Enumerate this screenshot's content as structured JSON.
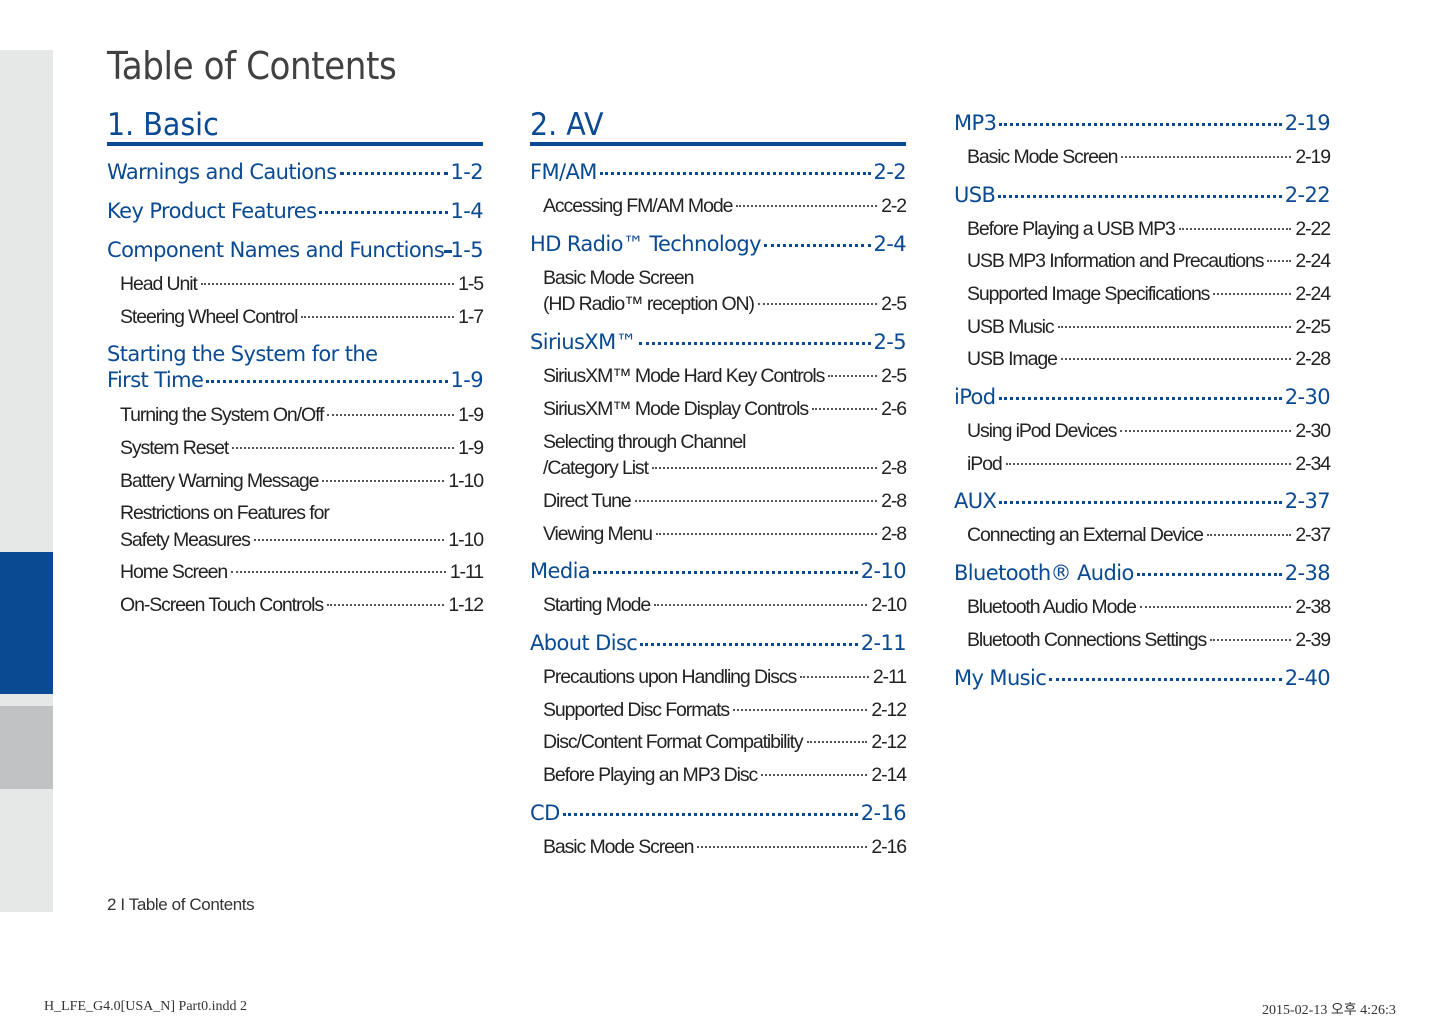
{
  "page_title": "Table of Contents",
  "footer": "2 I Table of Contents",
  "slug_left": "H_LFE_G4.0[USA_N] Part0.indd   2",
  "slug_right": "2015-02-13   오후 4:26:3",
  "colors": {
    "accent": "#0a4a92",
    "side_tab": "#e6e8e8",
    "side_tab_active": "#0a4a92",
    "side_tab_next": "#c0c2c3"
  },
  "columns": [
    {
      "chapter": "1. Basic",
      "entries": [
        {
          "type": "h",
          "lines": [
            "Warnings and Cautions"
          ],
          "page": "1-2"
        },
        {
          "type": "h",
          "lines": [
            "Key Product Features"
          ],
          "page": "1-4"
        },
        {
          "type": "h",
          "lines": [
            "Component Names and Functions"
          ],
          "page": "1-5"
        },
        {
          "type": "s",
          "lines": [
            "Head Unit"
          ],
          "page": "1-5"
        },
        {
          "type": "s",
          "lines": [
            "Steering Wheel Control"
          ],
          "page": "1-7"
        },
        {
          "type": "h",
          "lines": [
            "Starting the System for the",
            "First Time"
          ],
          "page": "1-9"
        },
        {
          "type": "s",
          "lines": [
            "Turning the System On/Off"
          ],
          "page": "1-9"
        },
        {
          "type": "s",
          "lines": [
            "System Reset"
          ],
          "page": "1-9"
        },
        {
          "type": "s",
          "lines": [
            "Battery Warning Message"
          ],
          "page": "1-10"
        },
        {
          "type": "s",
          "lines": [
            "Restrictions on Features for",
            "Safety Measures"
          ],
          "page": "1-10"
        },
        {
          "type": "s",
          "lines": [
            "Home Screen"
          ],
          "page": "1-11"
        },
        {
          "type": "s",
          "lines": [
            "On-Screen Touch Controls"
          ],
          "page": "1-12"
        }
      ]
    },
    {
      "chapter": "2. AV",
      "entries": [
        {
          "type": "h",
          "lines": [
            "FM/AM"
          ],
          "page": "2-2"
        },
        {
          "type": "s",
          "lines": [
            "Accessing FM/AM Mode"
          ],
          "page": "2-2"
        },
        {
          "type": "h",
          "lines": [
            "HD Radio™ Technology"
          ],
          "page": "2-4"
        },
        {
          "type": "s",
          "lines": [
            "Basic Mode Screen",
            "(HD Radio™  reception ON)"
          ],
          "page": "2-5"
        },
        {
          "type": "h",
          "lines": [
            "SiriusXM™"
          ],
          "page": "2-5"
        },
        {
          "type": "s",
          "lines": [
            "SiriusXM™ Mode Hard Key Controls"
          ],
          "page": "2-5"
        },
        {
          "type": "s",
          "lines": [
            "SiriusXM™  Mode Display Controls"
          ],
          "page": "2-6"
        },
        {
          "type": "s",
          "lines": [
            "Selecting through Channel",
            "/Category List"
          ],
          "page": "2-8"
        },
        {
          "type": "s",
          "lines": [
            "Direct Tune"
          ],
          "page": "2-8"
        },
        {
          "type": "s",
          "lines": [
            "Viewing Menu"
          ],
          "page": "2-8"
        },
        {
          "type": "h",
          "lines": [
            "Media"
          ],
          "page": "2-10"
        },
        {
          "type": "s",
          "lines": [
            "Starting Mode"
          ],
          "page": "2-10"
        },
        {
          "type": "h",
          "lines": [
            "About Disc"
          ],
          "page": "2-11"
        },
        {
          "type": "s",
          "lines": [
            "Precautions upon Handling Discs"
          ],
          "page": "2-11"
        },
        {
          "type": "s",
          "lines": [
            "Supported Disc Formats"
          ],
          "page": "2-12"
        },
        {
          "type": "s",
          "lines": [
            "Disc/Content Format Compatibility"
          ],
          "page": "2-12"
        },
        {
          "type": "s",
          "lines": [
            "Before Playing an MP3 Disc"
          ],
          "page": "2-14"
        },
        {
          "type": "h",
          "lines": [
            "CD"
          ],
          "page": "2-16"
        },
        {
          "type": "s",
          "lines": [
            "Basic Mode Screen"
          ],
          "page": "2-16"
        }
      ]
    },
    {
      "chapter": "",
      "entries": [
        {
          "type": "h",
          "lines": [
            "MP3"
          ],
          "page": "2-19"
        },
        {
          "type": "s",
          "lines": [
            "Basic Mode Screen"
          ],
          "page": "2-19"
        },
        {
          "type": "h",
          "lines": [
            "USB"
          ],
          "page": "2-22"
        },
        {
          "type": "s",
          "lines": [
            "Before Playing a USB MP3"
          ],
          "page": "2-22"
        },
        {
          "type": "s",
          "lines": [
            "USB MP3 Information and Precautions"
          ],
          "page": "2-24"
        },
        {
          "type": "s",
          "lines": [
            "Supported Image Specifications"
          ],
          "page": "2-24"
        },
        {
          "type": "s",
          "lines": [
            "USB Music"
          ],
          "page": "2-25"
        },
        {
          "type": "s",
          "lines": [
            "USB Image"
          ],
          "page": "2-28"
        },
        {
          "type": "h",
          "lines": [
            "iPod"
          ],
          "page": "2-30"
        },
        {
          "type": "s",
          "lines": [
            "Using iPod Devices"
          ],
          "page": "2-30"
        },
        {
          "type": "s",
          "lines": [
            "iPod"
          ],
          "page": "2-34"
        },
        {
          "type": "h",
          "lines": [
            "AUX"
          ],
          "page": "2-37"
        },
        {
          "type": "s",
          "lines": [
            "Connecting an External Device"
          ],
          "page": "2-37"
        },
        {
          "type": "h",
          "lines": [
            "Bluetooth® Audio"
          ],
          "page": "2-38"
        },
        {
          "type": "s",
          "lines": [
            "Bluetooth Audio Mode"
          ],
          "page": "2-38"
        },
        {
          "type": "s",
          "lines": [
            "Bluetooth Connections Settings"
          ],
          "page": "2-39"
        },
        {
          "type": "h",
          "lines": [
            "My Music"
          ],
          "page": "2-40"
        }
      ]
    }
  ]
}
